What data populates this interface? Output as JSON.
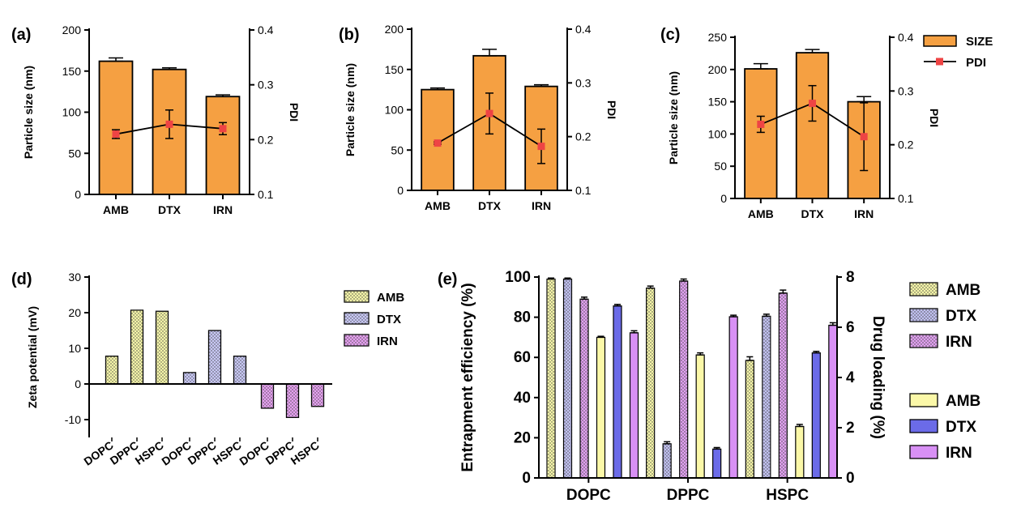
{
  "chart_data": [
    {
      "type": "bar",
      "panel": "(a)",
      "categories": [
        "AMB",
        "DTX",
        "IRN"
      ],
      "ylabel": "Particle size (nm)",
      "ylabel_right": "PDI",
      "ylim": [
        0,
        200
      ],
      "ylim_right": [
        0.1,
        0.4
      ],
      "yticks": [
        "0",
        "50",
        "100",
        "150",
        "200"
      ],
      "yticks_right": [
        "0.1",
        "0.2",
        "0.3",
        "0.4"
      ],
      "series": [
        {
          "name": "SIZE",
          "kind": "bar",
          "axis": "left",
          "values": [
            162,
            152,
            119
          ],
          "errors": [
            4,
            2,
            2
          ]
        },
        {
          "name": "PDI",
          "kind": "line",
          "axis": "right",
          "values": [
            0.21,
            0.228,
            0.22
          ],
          "errors": [
            0.008,
            0.026,
            0.011
          ]
        }
      ],
      "legend": "top-right",
      "grid": false
    },
    {
      "type": "bar",
      "panel": "(b)",
      "categories": [
        "AMB",
        "DTX",
        "IRN"
      ],
      "ylabel": "Particle size (nm)",
      "ylabel_right": "PDI",
      "ylim": [
        0,
        200
      ],
      "ylim_right": [
        0.1,
        0.4
      ],
      "yticks": [
        "0",
        "50",
        "100",
        "150",
        "200"
      ],
      "yticks_right": [
        "0.1",
        "0.2",
        "0.3",
        "0.4"
      ],
      "series": [
        {
          "name": "SIZE",
          "kind": "bar",
          "axis": "left",
          "values": [
            125,
            167,
            129
          ],
          "errors": [
            2,
            8,
            2
          ]
        },
        {
          "name": "PDI",
          "kind": "line",
          "axis": "right",
          "values": [
            0.188,
            0.243,
            0.182
          ],
          "errors": [
            0.002,
            0.038,
            0.032
          ]
        }
      ],
      "grid": false
    },
    {
      "type": "bar",
      "panel": "(c)",
      "categories": [
        "AMB",
        "DTX",
        "IRN"
      ],
      "ylabel": "Particle size (nm)",
      "ylabel_right": "PDI",
      "ylim": [
        0,
        250
      ],
      "ylim_right": [
        0.1,
        0.4
      ],
      "yticks": [
        "0",
        "50",
        "100",
        "150",
        "200",
        "250"
      ],
      "yticks_right": [
        "0.1",
        "0.2",
        "0.3",
        "0.4"
      ],
      "series": [
        {
          "name": "SIZE",
          "kind": "bar",
          "axis": "left",
          "values": [
            201,
            226,
            150
          ],
          "errors": [
            8,
            5,
            8
          ]
        },
        {
          "name": "PDI",
          "kind": "line",
          "axis": "right",
          "values": [
            0.238,
            0.277,
            0.215
          ],
          "errors": [
            0.015,
            0.033,
            0.063
          ]
        }
      ],
      "grid": false
    },
    {
      "type": "bar",
      "panel": "(d)",
      "groups": [
        "AMB",
        "DTX",
        "IRN"
      ],
      "categories": [
        "DOPC",
        "DPPC",
        "HSPC"
      ],
      "ylabel": "Zeta potential (mV)",
      "ylim": [
        -15,
        30
      ],
      "yticks": [
        "-10",
        "0",
        "10",
        "20",
        "30"
      ],
      "series": [
        {
          "name": "AMB",
          "color": "#f5f5a8",
          "values": [
            7.8,
            20.7,
            20.4
          ]
        },
        {
          "name": "DTX",
          "color": "#c8c8f5",
          "values": [
            3.2,
            15,
            7.8
          ]
        },
        {
          "name": "IRN",
          "color": "#e5a0f0",
          "values": [
            -6.8,
            -9.4,
            -6.3
          ]
        }
      ],
      "legend": "right",
      "grid": false
    },
    {
      "type": "bar",
      "panel": "(e)",
      "categories": [
        "DOPC",
        "DPPC",
        "HSPC"
      ],
      "ylabel": "Entrapment efficiency (%)",
      "ylabel_right": "Drug loading (%)",
      "ylim": [
        0,
        100
      ],
      "ylim_right": [
        0,
        8
      ],
      "yticks": [
        "0",
        "20",
        "40",
        "60",
        "80",
        "100"
      ],
      "yticks_right": [
        "0",
        "2",
        "4",
        "6",
        "8"
      ],
      "series": [
        {
          "name": "AMB",
          "kind": "entrapment",
          "axis": "left",
          "style": "dotted",
          "color": "#f5f5a8",
          "values": [
            99,
            94.5,
            58.5
          ],
          "errors": [
            0.5,
            1,
            1.8
          ]
        },
        {
          "name": "DTX",
          "kind": "entrapment",
          "axis": "left",
          "style": "dotted",
          "color": "#c0c0f0",
          "values": [
            99,
            17,
            80.5
          ],
          "errors": [
            0.5,
            1,
            1
          ]
        },
        {
          "name": "IRN",
          "kind": "entrapment",
          "axis": "left",
          "style": "dotted",
          "color": "#e0a0f0",
          "values": [
            89,
            98,
            92
          ],
          "errors": [
            1,
            1,
            1.5
          ]
        },
        {
          "name": "AMB",
          "kind": "loading",
          "axis": "right",
          "style": "solid",
          "color": "#fbf8a8",
          "values": [
            5.6,
            4.9,
            2.05
          ],
          "errors": [
            0.04,
            0.08,
            0.08
          ]
        },
        {
          "name": "DTX",
          "kind": "loading",
          "axis": "right",
          "style": "solid",
          "color": "#6b6be8",
          "values": [
            6.85,
            1.15,
            4.98
          ],
          "errors": [
            0.06,
            0.06,
            0.06
          ]
        },
        {
          "name": "IRN",
          "kind": "loading",
          "axis": "right",
          "style": "solid",
          "color": "#d890f5",
          "values": [
            5.78,
            6.42,
            6.08
          ],
          "errors": [
            0.08,
            0.06,
            0.1
          ]
        }
      ],
      "legend": "right",
      "grid": false
    }
  ],
  "legend_abc": [
    {
      "label": "SIZE",
      "color": "#f5a042",
      "kind": "bar"
    },
    {
      "label": "PDI",
      "color": "#ee4444",
      "kind": "line"
    }
  ],
  "colors": {
    "bar": "#f5a042",
    "pdi": "#ee4444"
  }
}
